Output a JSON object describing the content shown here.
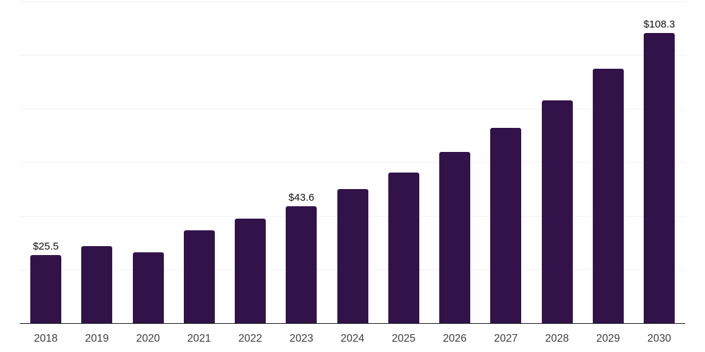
{
  "chart_data": {
    "type": "bar",
    "title": "",
    "categories": [
      "2018",
      "2019",
      "2020",
      "2021",
      "2022",
      "2023",
      "2024",
      "2025",
      "2026",
      "2027",
      "2028",
      "2029",
      "2030"
    ],
    "values": [
      25.5,
      28.7,
      26.4,
      34.5,
      38.9,
      43.6,
      50.0,
      56.2,
      63.9,
      72.7,
      83.2,
      94.9,
      108.3
    ],
    "data_labels": [
      {
        "index": 0,
        "text": "$25.5"
      },
      {
        "index": 5,
        "text": "$43.6"
      },
      {
        "index": 12,
        "text": "$108.3"
      }
    ],
    "xlabel": "",
    "ylabel": "",
    "ylim": [
      0,
      120
    ],
    "gridline_step": 20,
    "grid": "horizontal-only",
    "y_tick_labels_visible": false,
    "legend": "none",
    "colors": {
      "bar": "#321349",
      "gridline": "#f2f2f2",
      "axis_line": "#1c1c1c",
      "tick_label": "#3d3d3d",
      "data_label": "#101010",
      "background": "#ffffff"
    }
  }
}
